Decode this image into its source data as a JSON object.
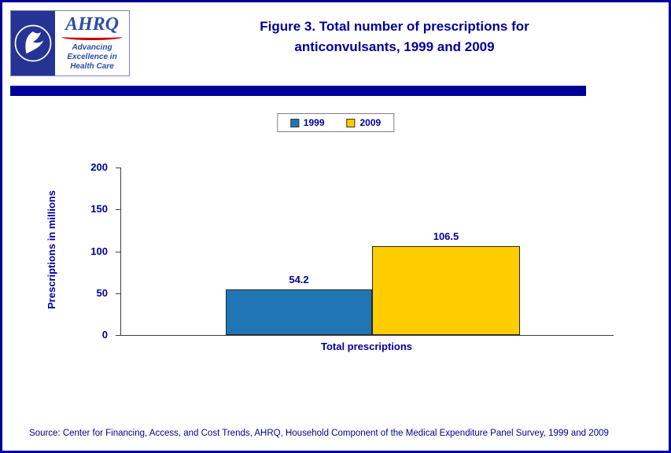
{
  "header": {
    "title_line1": "Figure 3. Total number of prescriptions for",
    "title_line2": "anticonvulsants, 1999 and 2009"
  },
  "logo": {
    "ahrq_text": "AHRQ",
    "tagline_line1": "Advancing",
    "tagline_line2": "Excellence in",
    "tagline_line3": "Health Care"
  },
  "chart_data": {
    "type": "bar",
    "title": "Figure 3. Total number of prescriptions for anticonvulsants, 1999 and 2009",
    "categories": [
      "Total prescriptions"
    ],
    "series": [
      {
        "name": "1999",
        "values": [
          54.2
        ],
        "color": "#2076b4"
      },
      {
        "name": "2009",
        "values": [
          106.5
        ],
        "color": "#ffcc00"
      }
    ],
    "xlabel": "Total prescriptions",
    "ylabel": "Prescriptions in millions",
    "ylim": [
      0,
      200
    ],
    "yticks": [
      0,
      50,
      100,
      150,
      200
    ],
    "legend_position": "top",
    "grid": false
  },
  "footer": {
    "source": "Source: Center for Financing, Access, and Cost Trends, AHRQ, Household Component of the Medical Expenditure Panel Survey,  1999 and 2009"
  },
  "colors": {
    "accent_navy": "#000099",
    "bar_1999": "#2076b4",
    "bar_2009": "#ffcc00",
    "logo_blue": "#2b4ea2",
    "logo_red": "#cc0000",
    "hhs_navy": "#253494"
  }
}
